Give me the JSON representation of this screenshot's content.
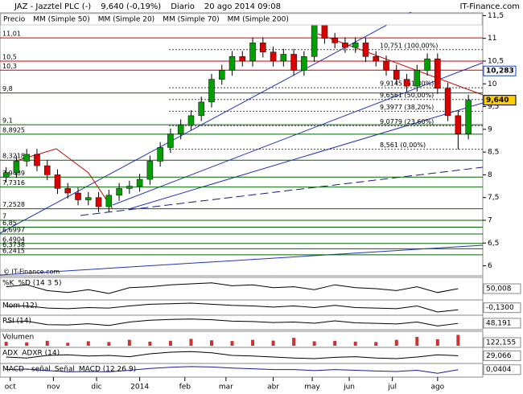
{
  "chart_data": {
    "type": "candlestick",
    "title": "JAZ - Jazztel PLC (-)",
    "quote": "9,640 (-0,19%)",
    "period": "Diario",
    "date": "20 ago 2014 09:08",
    "source": "IT-Finance.com",
    "watermark": "© IT-Finance.com",
    "legend": [
      {
        "name": "Precio",
        "color": "#555555"
      },
      {
        "name": "MM (Simple 50)",
        "color": "#a8a8e0"
      },
      {
        "name": "MM (Simple 20)",
        "color": "#cc0000"
      },
      {
        "name": "MM (Simple 70)",
        "color": "#1a1aa0"
      },
      {
        "name": "MM (Simple 200)",
        "color": "#1a1a60"
      }
    ],
    "x": [
      0,
      5,
      10,
      15,
      20,
      25,
      30,
      35,
      40,
      45,
      50,
      55,
      60,
      65,
      70,
      75,
      80,
      85,
      90,
      95,
      100,
      105,
      110,
      115,
      120,
      125,
      130,
      135,
      140,
      145,
      150,
      155,
      160,
      165,
      170,
      175,
      180,
      185,
      190,
      195,
      200,
      205,
      210,
      215,
      220,
      225
    ],
    "open": [
      7.95,
      8.05,
      8.3,
      8.45,
      8.2,
      8.0,
      7.7,
      7.6,
      7.45,
      7.5,
      7.3,
      7.55,
      7.7,
      7.75,
      7.9,
      8.3,
      8.6,
      8.9,
      9.1,
      9.3,
      9.6,
      10.1,
      10.3,
      10.6,
      10.5,
      10.9,
      10.7,
      10.5,
      10.65,
      10.3,
      10.6,
      11.3,
      11.0,
      10.9,
      10.8,
      10.9,
      10.6,
      10.5,
      10.3,
      10.1,
      9.95,
      10.3,
      10.55,
      9.9,
      9.3,
      8.9
    ],
    "high": [
      8.17,
      8.42,
      8.57,
      8.57,
      8.32,
      8.12,
      7.82,
      7.72,
      7.62,
      7.62,
      7.67,
      7.82,
      7.87,
      8.02,
      8.42,
      8.72,
      9.02,
      9.22,
      9.42,
      9.72,
      10.22,
      10.42,
      10.72,
      10.72,
      11.02,
      11.02,
      10.82,
      10.77,
      10.77,
      10.72,
      11.5,
      11.42,
      11.12,
      11.02,
      11.02,
      11.02,
      10.72,
      10.62,
      10.42,
      10.22,
      10.42,
      10.67,
      10.67,
      10.02,
      9.42,
      9.76
    ],
    "low": [
      7.83,
      7.93,
      8.18,
      8.08,
      7.88,
      7.58,
      7.48,
      7.33,
      7.33,
      7.18,
      7.18,
      7.43,
      7.58,
      7.63,
      7.78,
      8.18,
      8.48,
      8.78,
      8.98,
      9.18,
      9.48,
      9.98,
      10.18,
      10.38,
      10.38,
      10.58,
      10.38,
      10.38,
      10.18,
      10.18,
      10.48,
      10.88,
      10.78,
      10.68,
      10.68,
      10.48,
      10.38,
      10.18,
      9.98,
      9.83,
      9.83,
      10.18,
      9.78,
      9.18,
      8.56,
      8.78
    ],
    "close": [
      8.05,
      8.3,
      8.45,
      8.2,
      8.0,
      7.7,
      7.6,
      7.45,
      7.5,
      7.3,
      7.55,
      7.7,
      7.75,
      7.9,
      8.3,
      8.6,
      8.9,
      9.1,
      9.3,
      9.6,
      10.1,
      10.3,
      10.6,
      10.5,
      10.9,
      10.7,
      10.5,
      10.65,
      10.3,
      10.6,
      11.3,
      11.0,
      10.9,
      10.8,
      10.9,
      10.6,
      10.5,
      10.3,
      10.1,
      9.95,
      10.3,
      10.55,
      9.9,
      9.3,
      8.9,
      9.64
    ],
    "up_color": "#00a000",
    "down_color": "#dd0000",
    "xlim": [
      -3,
      232
    ],
    "xticks": [
      {
        "value": 2,
        "label": "oct"
      },
      {
        "value": 23,
        "label": "nov"
      },
      {
        "value": 44,
        "label": "dic"
      },
      {
        "value": 65,
        "label": "2014"
      },
      {
        "value": 87,
        "label": "feb"
      },
      {
        "value": 107,
        "label": "mar"
      },
      {
        "value": 130,
        "label": "abr"
      },
      {
        "value": 149,
        "label": "may"
      },
      {
        "value": 167,
        "label": "jun"
      },
      {
        "value": 188,
        "label": "jul"
      },
      {
        "value": 210,
        "label": "ago"
      }
    ],
    "ylim": [
      5.78,
      11.56
    ],
    "yticks": [
      6,
      {
        "value": 6.5,
        "label": "6,5"
      },
      7,
      {
        "value": 7.5,
        "label": "7,5"
      },
      8,
      {
        "value": 8.5,
        "label": "8,5"
      },
      9,
      {
        "value": 9.5,
        "label": "9,5"
      },
      10,
      {
        "value": 10.5,
        "label": "10,5"
      },
      11,
      {
        "value": 11.5,
        "label": "11,5"
      }
    ],
    "levels": [
      {
        "value": 11.01,
        "label": "11,01",
        "color": "#cc0000"
      },
      {
        "value": 10.5,
        "label": "10,5",
        "color": "#cc0000"
      },
      {
        "value": 10.3,
        "label": "10,3",
        "color": "#cc0000"
      },
      {
        "value": 9.8,
        "label": "9,8",
        "color": "#006400"
      },
      {
        "value": 9.1,
        "label": "9,1",
        "color": "#006400"
      },
      {
        "value": 8.8925,
        "label": "8,8925",
        "color": "#006400"
      },
      {
        "value": 8.3218,
        "label": "8,3218",
        "color": "#006400"
      },
      {
        "value": 7.9489,
        "label": "7,9489",
        "color": "#006400"
      },
      {
        "value": 7.7316,
        "label": "7,7316",
        "color": "#006400"
      },
      {
        "value": 7.2528,
        "label": "7,2528",
        "color": "#006400"
      },
      {
        "value": 7,
        "label": "7",
        "color": "#006400"
      },
      {
        "value": 6.85,
        "label": "6,85",
        "color": "#006400"
      },
      {
        "value": 6.6997,
        "label": "6,6997",
        "color": "#006400"
      },
      {
        "value": 6.4904,
        "label": "6,4904",
        "color": "#006400"
      },
      {
        "value": 6.3738,
        "label": "6,3738",
        "color": "#006400"
      },
      {
        "value": 6.2415,
        "label": "6,2415",
        "color": "#006400"
      }
    ],
    "fib": [
      {
        "value": 10.751,
        "label": "10,751 (100,00%)"
      },
      {
        "value": 9.9145,
        "label": "9,9145 (61,80%)"
      },
      {
        "value": 9.6561,
        "label": "9,6561 (50,00%)"
      },
      {
        "value": 9.3977,
        "label": "9,3977 (38,20%)"
      },
      {
        "value": 9.0779,
        "label": "9,0779 (23,60%)"
      },
      {
        "value": 8.561,
        "label": "8,561 (0,00%)"
      }
    ],
    "fib_color": "#444444",
    "price_labels": [
      {
        "value": 10.283,
        "label": "10,283",
        "color": "#1a3fbf",
        "fill": "#ffffff"
      },
      {
        "value": 9.64,
        "label": "9,640",
        "color": "#000000",
        "fill": "#ffcc00"
      }
    ],
    "indicator_x": [
      0,
      10,
      20,
      30,
      40,
      50,
      60,
      70,
      80,
      90,
      100,
      110,
      120,
      130,
      140,
      150,
      160,
      170,
      180,
      190,
      200,
      210,
      220
    ],
    "indicators": [
      {
        "type": "line",
        "labels": [
          {
            "text": "%K",
            "color": "#000000"
          },
          {
            "text": "%D (14 3 5)",
            "color": "#cc0000"
          }
        ],
        "color": "#000000",
        "ylim": [
          0,
          100
        ],
        "values": [
          60,
          70,
          40,
          30,
          45,
          25,
          55,
          60,
          70,
          75,
          80,
          65,
          70,
          55,
          60,
          45,
          70,
          55,
          50,
          40,
          60,
          30,
          50
        ],
        "current": {
          "value": 50.008,
          "label": "50,008"
        }
      },
      {
        "type": "line",
        "labels": [
          {
            "text": "Mom (12)",
            "color": "#000000"
          }
        ],
        "color": "#000000",
        "ylim": [
          -1.2,
          1
        ],
        "values": [
          0.1,
          0.2,
          -0.2,
          -0.3,
          -0.1,
          -0.2,
          0.2,
          0.5,
          0.6,
          0.7,
          0.5,
          0.3,
          0.2,
          0,
          0.2,
          -0.1,
          0.3,
          -0.1,
          -0.2,
          -0.3,
          0.2,
          -0.9,
          -0.5
        ],
        "current": {
          "value": -0.13,
          "label": "-0,1300"
        }
      },
      {
        "type": "line",
        "labels": [
          {
            "text": "RSI (14)",
            "color": "#000000"
          }
        ],
        "color": "#000000",
        "ylim": [
          20,
          85
        ],
        "values": [
          55,
          60,
          40,
          38,
          45,
          35,
          55,
          65,
          70,
          72,
          68,
          60,
          58,
          52,
          55,
          48,
          62,
          50,
          47,
          44,
          55,
          32,
          47
        ],
        "current": {
          "value": 48.191,
          "label": "48,191"
        }
      },
      {
        "type": "bar",
        "labels": [
          {
            "text": "Volumen",
            "color": "#cc0000"
          }
        ],
        "color": "#cc3333",
        "ylim": [
          0,
          1300
        ],
        "values": [
          400,
          350,
          500,
          300,
          450,
          380,
          600,
          420,
          500,
          700,
          550,
          480,
          600,
          520,
          800,
          450,
          500,
          420,
          380,
          600,
          900,
          650,
          1100
        ],
        "current": {
          "value": 122.155,
          "label": "122,155"
        }
      },
      {
        "type": "line",
        "labels": [
          {
            "text": "ADX",
            "color": "#000000"
          },
          {
            "text": "ADXR (14)",
            "color": "#cc0000"
          }
        ],
        "color": "#000000",
        "ylim": [
          10,
          50
        ],
        "values": [
          25,
          22,
          30,
          32,
          28,
          30,
          26,
          35,
          40,
          42,
          38,
          30,
          28,
          25,
          22,
          20,
          24,
          26,
          22,
          20,
          25,
          32,
          29
        ],
        "current": {
          "value": 29.066,
          "label": "29,066"
        }
      },
      {
        "type": "line",
        "labels": [
          {
            "text": "MACD - señal",
            "color": "#00a000"
          },
          {
            "text": "Señal",
            "color": "#cc0000"
          },
          {
            "text": "MACD (12 26 9)",
            "color": "#1a1aa0"
          }
        ],
        "color": "#1a1aa0",
        "ylim": [
          -0.35,
          0.35
        ],
        "values": [
          0.05,
          0.08,
          -0.02,
          -0.1,
          -0.08,
          -0.1,
          0.0,
          0.12,
          0.2,
          0.25,
          0.22,
          0.15,
          0.1,
          0.05,
          0.05,
          -0.02,
          0.05,
          0.0,
          -0.05,
          -0.08,
          0.0,
          -0.2,
          0.04
        ],
        "current": {
          "value": 0.0404,
          "label": "0,0404"
        }
      }
    ]
  }
}
